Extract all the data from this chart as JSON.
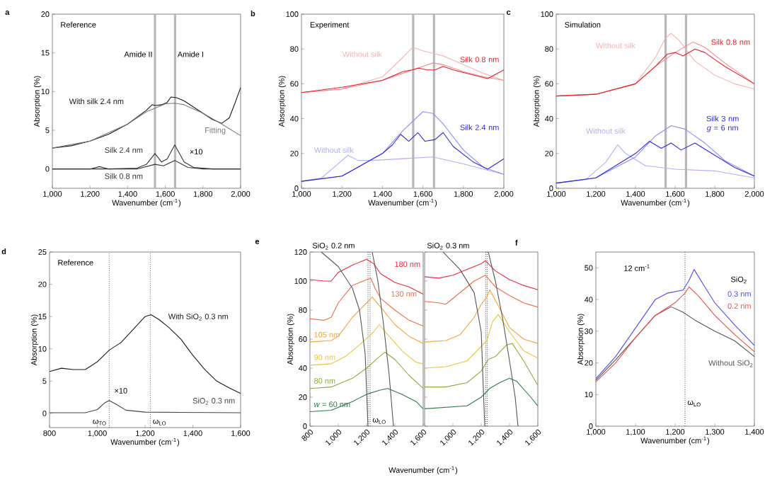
{
  "chart_data": [
    {
      "type": "line",
      "title": "Reference",
      "xlabel": "Wavenumber (cm$^{-1}$)",
      "ylabel": "Absorption (%)",
      "annotations": [
        "a",
        "×10"
      ],
      "xlim": [
        1000,
        2000
      ],
      "ylim": [
        -2.5,
        20
      ],
      "xticks": [
        {
          "value": 1000,
          "label": "1,000"
        },
        {
          "value": 1200,
          "label": "1,200"
        },
        {
          "value": 1400,
          "label": "1,400"
        },
        {
          "value": 1600,
          "label": "1,600"
        },
        {
          "value": 1800,
          "label": "1,800"
        },
        {
          "value": 2000,
          "label": "2,000"
        }
      ],
      "yticks": [
        0,
        5,
        10,
        15,
        20
      ],
      "ref_lines": [
        {
          "axis": "x",
          "value": 1545,
          "label": "Amide II",
          "color": "#b8b8b8",
          "line_style": "solid"
        },
        {
          "axis": "x",
          "value": 1652,
          "label": "Amide I",
          "color": "#b8b8b8",
          "line_style": "solid"
        }
      ],
      "series": [
        {
          "name": "With silk 2.4 nm",
          "color": "#1a1a1a",
          "x": [
            1000,
            1100,
            1200,
            1300,
            1400,
            1450,
            1500,
            1530,
            1550,
            1580,
            1610,
            1630,
            1660,
            1700,
            1750,
            1800,
            1850,
            1900,
            1940,
            1970,
            2000
          ],
          "values": [
            2.7,
            3.0,
            3.6,
            4.5,
            5.8,
            6.7,
            7.6,
            8.3,
            8.2,
            8.3,
            8.6,
            9.3,
            9.2,
            8.8,
            8.0,
            7.2,
            6.4,
            5.9,
            6.6,
            8.5,
            10.5
          ]
        },
        {
          "name": "Fitting",
          "color": "#7a7a7a",
          "x": [
            1000,
            1200,
            1400,
            1500,
            1600,
            1650,
            1700,
            1800,
            1900,
            2000
          ],
          "values": [
            2.7,
            3.6,
            5.8,
            7.4,
            8.4,
            8.5,
            8.3,
            7.2,
            5.8,
            4.3
          ]
        },
        {
          "name": "Silk 2.4 nm",
          "color": "#333333",
          "x": [
            1000,
            1200,
            1250,
            1300,
            1450,
            1500,
            1545,
            1580,
            1610,
            1650,
            1700,
            1750,
            1850,
            2000
          ],
          "values": [
            0,
            0,
            0.3,
            0,
            0.1,
            0.6,
            2.0,
            0.9,
            1.3,
            3.1,
            0.9,
            0.2,
            0,
            0
          ]
        },
        {
          "name": "Silk 0.8 nm",
          "color": "#333333",
          "x": [
            1000,
            1450,
            1545,
            1590,
            1650,
            1720,
            1800,
            2000
          ],
          "values": [
            0,
            0,
            0.6,
            0.4,
            1.1,
            0.2,
            0,
            0
          ]
        }
      ]
    },
    {
      "type": "line",
      "title": "Experiment",
      "xlabel": "Wavenumber (cm$^{-1}$)",
      "ylabel": "Absorption (%)",
      "annotations": [
        "b"
      ],
      "xlim": [
        1000,
        2000
      ],
      "ylim": [
        0,
        100
      ],
      "xticks": [
        {
          "value": 1000,
          "label": "1,000"
        },
        {
          "value": 1200,
          "label": "1,200"
        },
        {
          "value": 1400,
          "label": "1,400"
        },
        {
          "value": 1600,
          "label": "1,600"
        },
        {
          "value": 1800,
          "label": "1,800"
        },
        {
          "value": 2000,
          "label": "2,000"
        }
      ],
      "yticks": [
        0,
        20,
        40,
        60,
        80,
        100
      ],
      "ref_lines": [
        {
          "axis": "x",
          "value": 1552,
          "color": "#b8b8b8",
          "line_style": "solid"
        },
        {
          "axis": "x",
          "value": 1655,
          "color": "#b8b8b8",
          "line_style": "solid"
        }
      ],
      "series": [
        {
          "name": "Without silk",
          "color": "#f9b0b0",
          "x": [
            1000,
            1200,
            1400,
            1500,
            1550,
            1600,
            1700,
            1800,
            1900,
            2000
          ],
          "values": [
            55,
            57,
            64,
            75,
            81,
            79,
            76,
            71,
            66,
            62
          ]
        },
        {
          "color": "#f58a8a",
          "x": [
            1000,
            1200,
            1400,
            1500,
            1600,
            1650,
            1700,
            1800,
            1900,
            2000
          ],
          "values": [
            55,
            57,
            62,
            66,
            70,
            72,
            71,
            67,
            64,
            62
          ]
        },
        {
          "name": "Silk 0.8 nm",
          "color": "#e8202a",
          "x": [
            1000,
            1200,
            1400,
            1500,
            1545,
            1580,
            1620,
            1660,
            1700,
            1750,
            1850,
            1920,
            2000
          ],
          "values": [
            55,
            58,
            62,
            67,
            68,
            69,
            68,
            68,
            70,
            68,
            65,
            63,
            68
          ]
        },
        {
          "name": "Without silk",
          "color": "#b0b0f5",
          "x": [
            1000,
            1100,
            1180,
            1230,
            1280,
            1350,
            1500,
            1650,
            1800,
            1900,
            2000
          ],
          "values": [
            4,
            6,
            14,
            19,
            16,
            16,
            17,
            18,
            14,
            11,
            8
          ]
        },
        {
          "color": "#8c8cf2",
          "x": [
            1000,
            1200,
            1400,
            1500,
            1600,
            1650,
            1700,
            1800,
            1900,
            2000
          ],
          "values": [
            4,
            7,
            20,
            33,
            44,
            43,
            37,
            22,
            12,
            8
          ]
        },
        {
          "name": "Silk 2.4 nm",
          "color": "#2a2ae0",
          "x": [
            1000,
            1200,
            1400,
            1450,
            1490,
            1530,
            1575,
            1610,
            1660,
            1700,
            1750,
            1850,
            1920,
            2000
          ],
          "values": [
            4,
            7,
            20,
            25,
            31,
            27,
            32,
            27,
            28,
            32,
            24,
            15,
            11,
            17
          ]
        }
      ]
    },
    {
      "type": "line",
      "title": "Simulation",
      "xlabel": "Wavenumber (cm$^{-1}$)",
      "ylabel": "Absorption (%)",
      "annotations": [
        "c"
      ],
      "xlim": [
        1000,
        2000
      ],
      "ylim": [
        0,
        100
      ],
      "xticks": [
        {
          "value": 1000,
          "label": "1,000"
        },
        {
          "value": 1200,
          "label": "1,200"
        },
        {
          "value": 1400,
          "label": "1,400"
        },
        {
          "value": 1600,
          "label": "1,600"
        },
        {
          "value": 1800,
          "label": "1,800"
        },
        {
          "value": 2000,
          "label": "2,000"
        }
      ],
      "yticks": [
        0,
        20,
        40,
        60,
        80,
        100
      ],
      "ref_lines": [
        {
          "axis": "x",
          "value": 1552,
          "color": "#b8b8b8",
          "line_style": "solid"
        },
        {
          "axis": "x",
          "value": 1655,
          "color": "#b8b8b8",
          "line_style": "solid"
        }
      ],
      "series": [
        {
          "name": "Without silk",
          "color": "#f9b0b0",
          "x": [
            1000,
            1200,
            1400,
            1500,
            1550,
            1580,
            1620,
            1700,
            1800,
            1900,
            2000
          ],
          "values": [
            53,
            54,
            60,
            75,
            86,
            89,
            85,
            73,
            65,
            60,
            57
          ]
        },
        {
          "color": "#f58a8a",
          "x": [
            1000,
            1200,
            1400,
            1500,
            1600,
            1690,
            1750,
            1850,
            2000
          ],
          "values": [
            53,
            54,
            60,
            70,
            78,
            84,
            81,
            72,
            60
          ]
        },
        {
          "name": "Silk 0.8 nm",
          "color": "#e8202a",
          "x": [
            1000,
            1200,
            1400,
            1500,
            1560,
            1600,
            1640,
            1700,
            1750,
            1850,
            2000
          ],
          "values": [
            53,
            54,
            60,
            70,
            77,
            78,
            76,
            80,
            78,
            70,
            60
          ]
        },
        {
          "name": "Without silk",
          "color": "#b0b0f5",
          "x": [
            1000,
            1150,
            1250,
            1310,
            1350,
            1450,
            1600,
            1800,
            2000
          ],
          "values": [
            3,
            5,
            15,
            25,
            20,
            13,
            11,
            10,
            6
          ]
        },
        {
          "color": "#8c8cf2",
          "x": [
            1000,
            1200,
            1400,
            1500,
            1580,
            1650,
            1750,
            1850,
            2000
          ],
          "values": [
            3,
            6,
            18,
            30,
            36,
            34,
            26,
            16,
            7
          ]
        },
        {
          "name": "Silk 3 nm *g* = 6 nm",
          "color": "#2a2ae0",
          "x": [
            1000,
            1200,
            1400,
            1470,
            1530,
            1580,
            1630,
            1700,
            1800,
            1900,
            2000
          ],
          "values": [
            3,
            6,
            20,
            27,
            23,
            26,
            22,
            26,
            19,
            12,
            7
          ]
        }
      ]
    },
    {
      "type": "line",
      "title": "Reference",
      "xlabel": "Wavenumber (cm$^{-1}$)",
      "ylabel": "Absorption (%)",
      "annotations": [
        "d",
        "×10"
      ],
      "xlim": [
        800,
        1600
      ],
      "ylim": [
        -2.2,
        25
      ],
      "xticks": [
        800,
        {
          "value": 1000,
          "label": "1,000"
        },
        {
          "value": 1200,
          "label": "1,200"
        },
        {
          "value": 1400,
          "label": "1,400"
        },
        {
          "value": 1600,
          "label": "1,600"
        }
      ],
      "yticks": [
        0,
        5,
        10,
        15,
        20,
        25
      ],
      "ref_lines": [
        {
          "axis": "x",
          "value": 1050,
          "label": "ω$_{TO}$",
          "color": "#666666",
          "line_style": "dotted"
        },
        {
          "axis": "x",
          "value": 1222,
          "label": "ω$_{LO}$",
          "color": "#666666",
          "line_style": "dotted"
        }
      ],
      "series": [
        {
          "name": "With SiO$_{2}$ 0.3 nm",
          "color": "#1a1a1a",
          "x": [
            800,
            850,
            900,
            950,
            1000,
            1050,
            1100,
            1150,
            1200,
            1225,
            1260,
            1300,
            1350,
            1400,
            1450,
            1500,
            1550,
            1600
          ],
          "values": [
            6.5,
            7.0,
            6.8,
            6.8,
            8.0,
            9.8,
            11.0,
            13.0,
            15.0,
            15.3,
            14.5,
            13.3,
            11.5,
            9.0,
            6.8,
            5.0,
            4.0,
            3.1
          ]
        },
        {
          "name": "SiO$_{2}$ 0.3 nm",
          "color": "#444444",
          "x": [
            800,
            950,
            1000,
            1030,
            1050,
            1080,
            1120,
            1200,
            1600
          ],
          "values": [
            0.1,
            0.1,
            0.6,
            1.6,
            2.0,
            1.4,
            0.5,
            0.2,
            0.1
          ]
        }
      ]
    },
    {
      "type": "line",
      "title": "SiO$_{2}$ 0.2 nm",
      "xlabel": "Wavenumber (cm$^{-1}$)",
      "ylabel": "Absorption (%)",
      "annotations": [
        "e"
      ],
      "xlim": [
        800,
        1600
      ],
      "ylim": [
        0,
        120
      ],
      "xticks": [
        800,
        {
          "value": 1000,
          "label": "1,000"
        },
        {
          "value": 1200,
          "label": "1,200"
        },
        {
          "value": 1400,
          "label": "1,400"
        },
        {
          "value": 1600,
          "label": "1,600"
        }
      ],
      "yticks": [
        0,
        20,
        40,
        60,
        80,
        100,
        120
      ],
      "ref_lines": [
        {
          "axis": "x",
          "value": 1210,
          "color": "#444444",
          "line_style": "dotted"
        },
        {
          "axis": "x",
          "value": 1225,
          "label": "ω$_{LO}$",
          "color": "#444444",
          "line_style": "dotted"
        }
      ],
      "series": [
        {
          "name": "*w* = 60 nm",
          "color": "#2f7a4a",
          "x": [
            800,
            950,
            1100,
            1200,
            1300,
            1350,
            1450,
            1550,
            1600
          ],
          "values": [
            10,
            11,
            17,
            22,
            25,
            26,
            22,
            17,
            12
          ]
        },
        {
          "name": "80 nm",
          "color": "#8aac3c",
          "x": [
            800,
            950,
            1100,
            1200,
            1280,
            1330,
            1400,
            1500,
            1600
          ],
          "values": [
            26,
            27,
            33,
            40,
            47,
            51,
            46,
            35,
            26
          ]
        },
        {
          "name": "90 nm",
          "color": "#ecc440",
          "x": [
            800,
            950,
            1050,
            1150,
            1250,
            1290,
            1350,
            1450,
            1550,
            1600
          ],
          "values": [
            42,
            43,
            48,
            56,
            65,
            70,
            63,
            52,
            44,
            43
          ]
        },
        {
          "name": "105 nm",
          "color": "#f5a33a",
          "x": [
            800,
            950,
            1000,
            1100,
            1200,
            1240,
            1300,
            1400,
            1500,
            1600
          ],
          "values": [
            58,
            59,
            62,
            75,
            85,
            89,
            82,
            70,
            62,
            57
          ]
        },
        {
          "name": "130 nm",
          "color": "#f26a45",
          "x": [
            800,
            900,
            950,
            1000,
            1100,
            1200,
            1230,
            1260,
            1300,
            1400,
            1500,
            1600
          ],
          "values": [
            74,
            73,
            75,
            85,
            97,
            101,
            102,
            95,
            88,
            80,
            73,
            69
          ]
        },
        {
          "name": "180 nm",
          "color": "#ee2a3a",
          "x": [
            800,
            900,
            950,
            1000,
            1100,
            1200,
            1250,
            1300,
            1400,
            1500,
            1600
          ],
          "values": [
            101,
            100,
            100,
            106,
            111,
            115,
            112,
            105,
            99,
            96,
            91
          ]
        },
        {
          "color": "#555555",
          "x": [
            880,
            1000,
            1100,
            1150,
            1190,
            1210
          ],
          "values": [
            120,
            110,
            95,
            80,
            50,
            0
          ]
        },
        {
          "color": "#555555",
          "x": [
            1240,
            1280,
            1320,
            1360,
            1390
          ],
          "values": [
            120,
            100,
            70,
            35,
            0
          ]
        }
      ]
    },
    {
      "type": "line",
      "title": "SiO$_{2}$ 0.3 nm",
      "tick_labels": "x",
      "xlim": [
        800,
        1600
      ],
      "ylim": [
        0,
        120
      ],
      "xticks": [
        {
          "value": 800,
          "label": null
        },
        {
          "value": 1000,
          "label": "1,000"
        },
        {
          "value": 1200,
          "label": "1,200"
        },
        {
          "value": 1400,
          "label": "1,400"
        },
        {
          "value": 1600,
          "label": "1,600"
        }
      ],
      "yticks": [
        0,
        20,
        40,
        60,
        80,
        100,
        120
      ],
      "ref_lines": [
        {
          "axis": "x",
          "value": 1232,
          "color": "#444444",
          "line_style": "dotted"
        },
        {
          "axis": "x",
          "value": 1242,
          "color": "#444444",
          "line_style": "dotted"
        }
      ],
      "series": [
        {
          "color": "#2f7a4a",
          "x": [
            800,
            1100,
            1200,
            1260,
            1330,
            1400,
            1450,
            1550,
            1600
          ],
          "values": [
            12,
            14,
            20,
            26,
            30,
            33,
            31,
            20,
            14
          ]
        },
        {
          "color": "#8aac3c",
          "x": [
            800,
            950,
            1100,
            1200,
            1250,
            1300,
            1380,
            1420,
            1500,
            1600
          ],
          "values": [
            27,
            27,
            30,
            38,
            46,
            48,
            56,
            57,
            45,
            28
          ]
        },
        {
          "color": "#ecc440",
          "x": [
            800,
            950,
            1100,
            1200,
            1240,
            1280,
            1320,
            1400,
            1500,
            1600
          ],
          "values": [
            40,
            41,
            45,
            55,
            59,
            72,
            77,
            65,
            52,
            47
          ]
        },
        {
          "color": "#f5a33a",
          "x": [
            800,
            950,
            1050,
            1150,
            1200,
            1240,
            1260,
            1320,
            1400,
            1500,
            1600
          ],
          "values": [
            58,
            59,
            63,
            75,
            84,
            89,
            94,
            83,
            68,
            60,
            57
          ]
        },
        {
          "color": "#f26a45",
          "x": [
            800,
            900,
            950,
            1050,
            1150,
            1230,
            1300,
            1400,
            1500,
            1600
          ],
          "values": [
            86,
            85,
            84,
            92,
            100,
            104,
            96,
            90,
            85,
            82
          ]
        },
        {
          "color": "#ee2a3a",
          "x": [
            800,
            900,
            1000,
            1100,
            1200,
            1230,
            1300,
            1400,
            1500,
            1600
          ],
          "values": [
            103,
            102,
            104,
            108,
            112,
            114,
            107,
            101,
            97,
            94
          ]
        },
        {
          "color": "#555555",
          "x": [
            930,
            1050,
            1150,
            1200,
            1225
          ],
          "values": [
            120,
            108,
            92,
            65,
            0
          ]
        },
        {
          "color": "#555555",
          "x": [
            1250,
            1300,
            1350,
            1400,
            1440,
            1460
          ],
          "values": [
            120,
            100,
            75,
            45,
            20,
            0
          ]
        }
      ]
    },
    {
      "type": "line",
      "xlabel": "Wavenumber (cm$^{-1}$)",
      "ylabel": "Absorption (%)",
      "legend_title": "SiO$_{2}$",
      "annotations": [
        "f",
        "12 cm$^{-1}$"
      ],
      "xlim": [
        1000,
        1400
      ],
      "ylim": [
        0,
        55
      ],
      "xticks": [
        {
          "value": 1000,
          "label": "1,000"
        },
        {
          "value": 1100,
          "label": "1,100"
        },
        {
          "value": 1200,
          "label": "1,200"
        },
        {
          "value": 1300,
          "label": "1,300"
        },
        {
          "value": 1400,
          "label": "1,400"
        }
      ],
      "yticks": [
        0,
        10,
        20,
        30,
        40,
        50
      ],
      "ref_lines": [
        {
          "axis": "x",
          "value": 1225,
          "label": "ω$_{LO}$",
          "color": "#444444",
          "line_style": "dotted"
        }
      ],
      "series": [
        {
          "name": "Without SiO$_{2}$",
          "color": "#555555",
          "x": [
            1000,
            1050,
            1100,
            1150,
            1190,
            1220,
            1250,
            1300,
            1350,
            1400
          ],
          "values": [
            14.5,
            21,
            28,
            35,
            37.7,
            36,
            33.5,
            30,
            27,
            22
          ]
        },
        {
          "name": "0.2 nm",
          "color": "#f24a4a",
          "x": [
            1000,
            1050,
            1100,
            1150,
            1200,
            1225,
            1235,
            1260,
            1300,
            1350,
            1400
          ],
          "values": [
            14,
            20,
            28,
            35,
            39,
            42,
            44,
            41,
            35,
            29,
            23.5
          ]
        },
        {
          "name": "0.3 nm",
          "color": "#4b4bf5",
          "x": [
            1000,
            1050,
            1100,
            1150,
            1180,
            1220,
            1235,
            1248,
            1270,
            1300,
            1350,
            1400
          ],
          "values": [
            15,
            22,
            31,
            40,
            42,
            43,
            46,
            49.5,
            45,
            39,
            32,
            25.5
          ]
        }
      ]
    }
  ]
}
